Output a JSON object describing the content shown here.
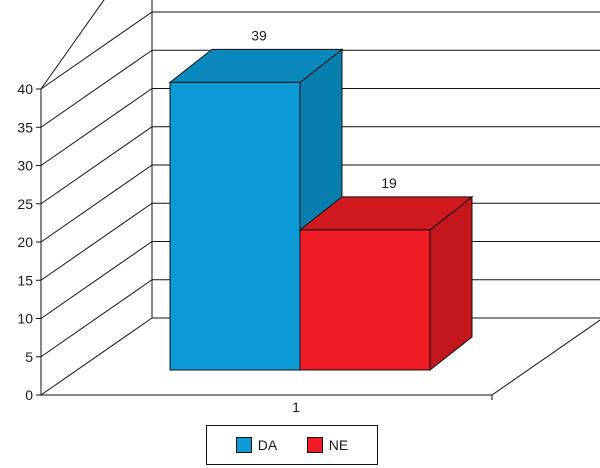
{
  "chart_data": {
    "type": "bar",
    "title": "",
    "xlabel": "",
    "ylabel": "",
    "categories": [
      "1"
    ],
    "series": [
      {
        "name": "DA",
        "values": [
          39
        ],
        "color": "#0a9ad6"
      },
      {
        "name": "NE",
        "values": [
          19
        ],
        "color": "#ee1c24"
      }
    ],
    "ylim": [
      0,
      40
    ],
    "yticks": [
      "0",
      "5",
      "10",
      "15",
      "20",
      "25",
      "30",
      "35",
      "40"
    ],
    "data_labels": [
      "39",
      "19"
    ],
    "grid": true,
    "three_d": true,
    "legend_position": "bottom"
  }
}
